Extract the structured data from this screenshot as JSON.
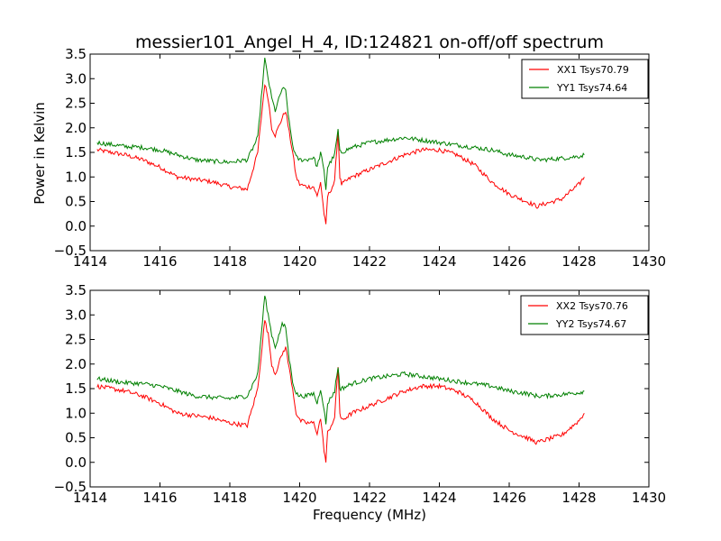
{
  "chart_data": [
    {
      "type": "line",
      "title": "messier101_Angel_H_4, ID:124821 on-off/off spectrum",
      "xlabel": "",
      "ylabel": "Power in Kelvin",
      "xlim": [
        1414,
        1430
      ],
      "ylim": [
        -0.5,
        3.5
      ],
      "xticks": [
        "1414",
        "1416",
        "1418",
        "1420",
        "1422",
        "1424",
        "1426",
        "1428",
        "1430"
      ],
      "yticks": [
        "−0.5",
        "0.0",
        "0.5",
        "1.0",
        "1.5",
        "2.0",
        "2.5",
        "3.0",
        "3.5"
      ],
      "legend_position": "top-right",
      "grid": false,
      "series": [
        {
          "name": "XX1 Tsys70.79",
          "color": "#ff0000",
          "x": [
            1414.2,
            1415.0,
            1415.5,
            1416.0,
            1416.5,
            1417.0,
            1417.5,
            1418.0,
            1418.5,
            1418.8,
            1419.0,
            1419.1,
            1419.2,
            1419.3,
            1419.5,
            1419.6,
            1419.7,
            1419.8,
            1419.9,
            1420.0,
            1420.2,
            1420.4,
            1420.5,
            1420.6,
            1420.7,
            1420.75,
            1420.8,
            1421.0,
            1421.1,
            1421.15,
            1421.2,
            1421.5,
            1422.0,
            1422.5,
            1423.0,
            1423.5,
            1424.0,
            1424.5,
            1425.0,
            1425.5,
            1426.0,
            1426.5,
            1426.8,
            1427.0,
            1427.5,
            1428.0,
            1428.15
          ],
          "y": [
            1.55,
            1.45,
            1.35,
            1.2,
            1.0,
            0.95,
            0.9,
            0.8,
            0.75,
            1.5,
            2.9,
            2.6,
            2.0,
            1.85,
            2.2,
            2.35,
            1.9,
            1.5,
            1.0,
            0.85,
            0.8,
            0.8,
            0.6,
            0.9,
            0.25,
            0.0,
            0.6,
            0.9,
            1.95,
            1.0,
            0.85,
            1.0,
            1.15,
            1.3,
            1.45,
            1.55,
            1.55,
            1.45,
            1.25,
            0.9,
            0.65,
            0.5,
            0.4,
            0.45,
            0.55,
            0.85,
            1.0
          ]
        },
        {
          "name": "YY1 Tsys74.64",
          "color": "#008000",
          "x": [
            1414.2,
            1415.0,
            1415.5,
            1416.0,
            1416.5,
            1417.0,
            1417.5,
            1418.0,
            1418.5,
            1418.8,
            1419.0,
            1419.1,
            1419.2,
            1419.3,
            1419.5,
            1419.6,
            1419.7,
            1419.8,
            1419.9,
            1420.0,
            1420.2,
            1420.4,
            1420.5,
            1420.6,
            1420.7,
            1420.75,
            1420.8,
            1421.0,
            1421.1,
            1421.15,
            1421.2,
            1421.5,
            1422.0,
            1422.5,
            1423.0,
            1423.5,
            1424.0,
            1424.5,
            1425.0,
            1425.5,
            1426.0,
            1426.5,
            1426.8,
            1427.0,
            1427.5,
            1428.0,
            1428.15
          ],
          "y": [
            1.7,
            1.62,
            1.6,
            1.55,
            1.45,
            1.35,
            1.32,
            1.3,
            1.35,
            1.8,
            3.4,
            3.0,
            2.6,
            2.35,
            2.8,
            2.75,
            2.1,
            1.65,
            1.4,
            1.35,
            1.35,
            1.4,
            1.2,
            1.5,
            1.1,
            0.75,
            1.2,
            1.45,
            1.95,
            1.5,
            1.5,
            1.6,
            1.7,
            1.75,
            1.8,
            1.75,
            1.7,
            1.65,
            1.6,
            1.55,
            1.45,
            1.4,
            1.35,
            1.35,
            1.38,
            1.42,
            1.45
          ]
        }
      ]
    },
    {
      "type": "line",
      "title": "",
      "xlabel": "Frequency (MHz)",
      "ylabel": "",
      "xlim": [
        1414,
        1430
      ],
      "ylim": [
        -0.5,
        3.5
      ],
      "xticks": [
        "1414",
        "1416",
        "1418",
        "1420",
        "1422",
        "1424",
        "1426",
        "1428",
        "1430"
      ],
      "yticks": [
        "−0.5",
        "0.0",
        "0.5",
        "1.0",
        "1.5",
        "2.0",
        "2.5",
        "3.0",
        "3.5"
      ],
      "legend_position": "top-right",
      "grid": false,
      "series": [
        {
          "name": "XX2 Tsys70.76",
          "color": "#ff0000",
          "x": [
            1414.2,
            1415.0,
            1415.5,
            1416.0,
            1416.5,
            1417.0,
            1417.5,
            1418.0,
            1418.5,
            1418.8,
            1419.0,
            1419.1,
            1419.2,
            1419.3,
            1419.5,
            1419.6,
            1419.7,
            1419.8,
            1419.9,
            1420.0,
            1420.2,
            1420.4,
            1420.5,
            1420.6,
            1420.7,
            1420.75,
            1420.8,
            1421.0,
            1421.1,
            1421.15,
            1421.2,
            1421.5,
            1422.0,
            1422.5,
            1423.0,
            1423.5,
            1424.0,
            1424.5,
            1425.0,
            1425.5,
            1426.0,
            1426.5,
            1426.8,
            1427.0,
            1427.5,
            1428.0,
            1428.15
          ],
          "y": [
            1.55,
            1.45,
            1.35,
            1.2,
            1.0,
            0.95,
            0.9,
            0.8,
            0.75,
            1.5,
            2.9,
            2.6,
            2.0,
            1.8,
            2.2,
            2.35,
            1.9,
            1.5,
            1.0,
            0.85,
            0.8,
            0.8,
            0.6,
            0.9,
            0.25,
            0.0,
            0.6,
            0.9,
            1.95,
            1.0,
            0.85,
            1.0,
            1.15,
            1.3,
            1.45,
            1.55,
            1.55,
            1.45,
            1.25,
            0.9,
            0.65,
            0.5,
            0.4,
            0.45,
            0.55,
            0.85,
            1.0
          ]
        },
        {
          "name": "YY2 Tsys74.67",
          "color": "#008000",
          "x": [
            1414.2,
            1415.0,
            1415.5,
            1416.0,
            1416.5,
            1417.0,
            1417.5,
            1418.0,
            1418.5,
            1418.8,
            1419.0,
            1419.1,
            1419.2,
            1419.3,
            1419.5,
            1419.6,
            1419.7,
            1419.8,
            1419.9,
            1420.0,
            1420.2,
            1420.4,
            1420.5,
            1420.6,
            1420.7,
            1420.75,
            1420.8,
            1421.0,
            1421.1,
            1421.15,
            1421.2,
            1421.5,
            1422.0,
            1422.5,
            1423.0,
            1423.5,
            1424.0,
            1424.5,
            1425.0,
            1425.5,
            1426.0,
            1426.5,
            1426.8,
            1427.0,
            1427.5,
            1428.0,
            1428.15
          ],
          "y": [
            1.7,
            1.62,
            1.6,
            1.55,
            1.45,
            1.35,
            1.32,
            1.3,
            1.35,
            1.8,
            3.4,
            3.0,
            2.6,
            2.35,
            2.8,
            2.75,
            2.1,
            1.65,
            1.4,
            1.35,
            1.35,
            1.4,
            1.2,
            1.5,
            1.1,
            0.75,
            1.2,
            1.45,
            1.95,
            1.5,
            1.5,
            1.6,
            1.7,
            1.75,
            1.8,
            1.75,
            1.7,
            1.65,
            1.6,
            1.55,
            1.45,
            1.4,
            1.35,
            1.35,
            1.38,
            1.42,
            1.45
          ]
        }
      ]
    }
  ]
}
